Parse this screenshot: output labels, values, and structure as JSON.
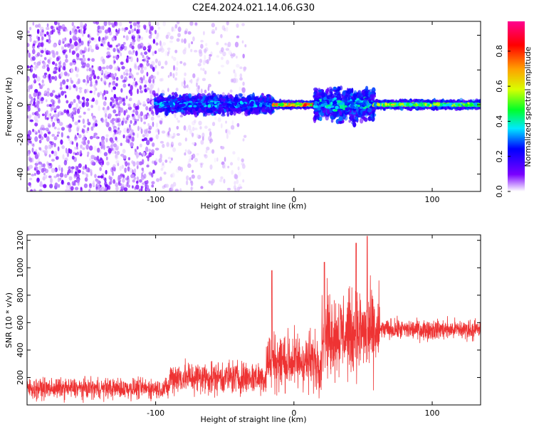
{
  "title": "C2E4.2024.021.14.06.G30",
  "chart_data": [
    {
      "type": "heatmap",
      "xlabel": "Height of straight line (km)",
      "ylabel": "Frequency (Hz)",
      "xlim": [
        -193,
        135
      ],
      "ylim": [
        -50,
        48
      ],
      "xticks": [
        -100,
        0,
        100
      ],
      "yticks": [
        -40,
        -20,
        0,
        20,
        40
      ],
      "grid": false,
      "colorbar": {
        "label": "Normalized spectral amplitude",
        "range": [
          0,
          0.97
        ],
        "ticks": [
          0.0,
          0.2,
          0.4,
          0.6,
          0.8
        ],
        "colors": [
          "#ffffff",
          "#7a00ff",
          "#0000ff",
          "#00e8ff",
          "#00ff28",
          "#d8ff00",
          "#ffa000",
          "#ff0000",
          "#ff0090"
        ]
      },
      "regions": [
        {
          "x": [
            -193,
            -100
          ],
          "pattern": "broadband scatter",
          "freq": [
            -50,
            48
          ],
          "amplitude": 0.05
        },
        {
          "x": [
            -100,
            -35
          ],
          "pattern": "faint scatter",
          "freq": [
            -50,
            48
          ],
          "amplitude": 0.02
        },
        {
          "x": [
            -100,
            -15
          ],
          "pattern": "band",
          "freq_halfwidth": 5,
          "amplitude": 0.35
        },
        {
          "x": [
            -15,
            15
          ],
          "pattern": "narrow band",
          "freq_halfwidth": 1.5,
          "amplitude": 0.85
        },
        {
          "x": [
            15,
            58
          ],
          "pattern": "wide band",
          "freq_halfwidth": 10,
          "amplitude": 0.4
        },
        {
          "x": [
            58,
            135
          ],
          "pattern": "narrow band",
          "freq_halfwidth": 2,
          "amplitude": 0.6
        }
      ]
    },
    {
      "type": "line",
      "xlabel": "Height of straight line (km)",
      "ylabel": "SNR (10 * v/v)",
      "xlim": [
        -193,
        135
      ],
      "ylim": [
        0,
        1240
      ],
      "xticks": [
        -100,
        0,
        100
      ],
      "yticks": [
        200,
        400,
        600,
        800,
        1000,
        1200
      ],
      "grid": false,
      "color": "#ee3333",
      "segments": [
        {
          "x": [
            -193,
            -90
          ],
          "median": 120,
          "spread": 110
        },
        {
          "x": [
            -90,
            -20
          ],
          "median": 200,
          "spread": 180
        },
        {
          "x": [
            -20,
            20
          ],
          "median": 320,
          "spread": 320
        },
        {
          "x": [
            20,
            62
          ],
          "median": 520,
          "spread": 450
        },
        {
          "x": [
            62,
            135
          ],
          "median": 550,
          "spread": 110
        }
      ],
      "peaks": [
        {
          "x": -16,
          "y": 980
        },
        {
          "x": 22,
          "y": 1040
        },
        {
          "x": 45,
          "y": 1180
        },
        {
          "x": 53,
          "y": 1230
        }
      ]
    }
  ]
}
